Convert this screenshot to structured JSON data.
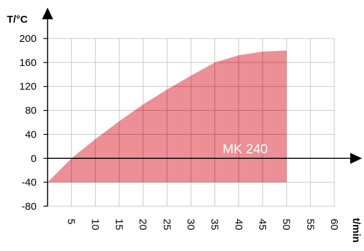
{
  "chart_data": {
    "type": "area",
    "ylabel": "T/°C",
    "xlabel": "t/min",
    "xlim": [
      0,
      60
    ],
    "ylim": [
      -80,
      200
    ],
    "x_ticks": [
      5,
      10,
      15,
      20,
      25,
      30,
      35,
      40,
      45,
      50,
      55,
      60
    ],
    "y_ticks": [
      200,
      160,
      120,
      80,
      40,
      0,
      -40,
      -80
    ],
    "x_tick_labels": [
      "5",
      "10",
      "15",
      "20",
      "25",
      "30",
      "35",
      "40",
      "45",
      "50",
      "55",
      "60"
    ],
    "y_tick_labels": [
      "200",
      "160",
      "120",
      "80",
      "40",
      "0",
      "-40",
      "-80"
    ],
    "grid": true,
    "series": [
      {
        "name": "MK 240",
        "color": "#ec8f96",
        "lower": -40,
        "x": [
          0,
          5,
          10,
          15,
          20,
          25,
          30,
          35,
          40,
          45,
          50
        ],
        "y": [
          -40,
          0,
          32,
          62,
          90,
          115,
          138,
          160,
          172,
          178,
          180
        ]
      }
    ]
  }
}
